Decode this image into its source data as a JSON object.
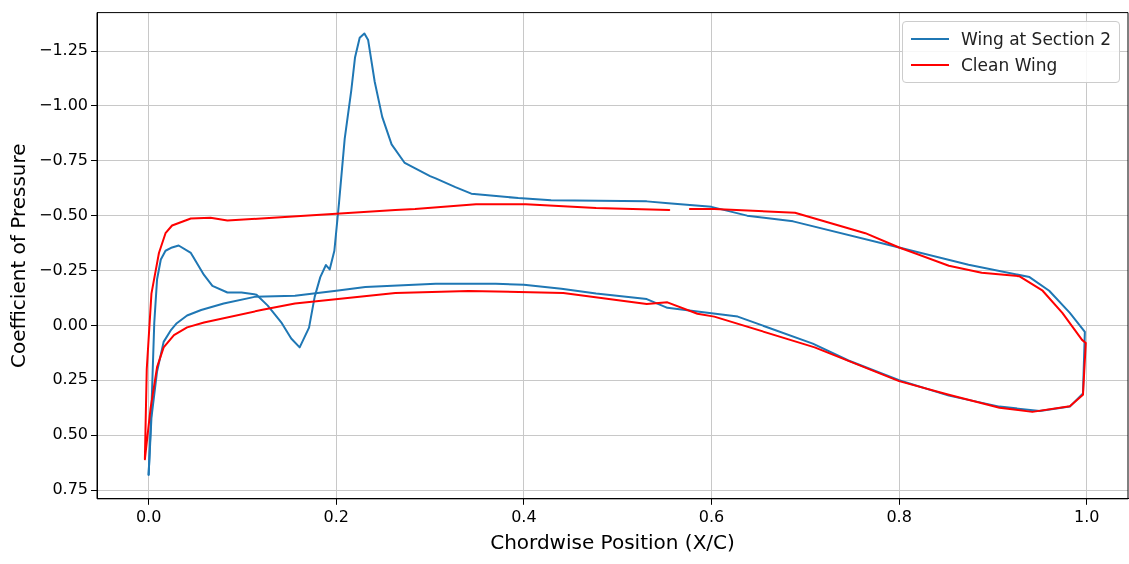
{
  "chart_data": {
    "type": "line",
    "xlabel": "Chordwise Position (X/C)",
    "ylabel": "Coefficient of Pressure",
    "xlim": [
      -0.055,
      1.044
    ],
    "ylim": [
      0.79,
      -1.425
    ],
    "xticks": [
      {
        "value": 0,
        "label": "0.0"
      },
      {
        "value": 0.2,
        "label": "0.2"
      },
      {
        "value": 0.4,
        "label": "0.4"
      },
      {
        "value": 0.6,
        "label": "0.6"
      },
      {
        "value": 0.8,
        "label": "0.8"
      },
      {
        "value": 1,
        "label": "1.0"
      }
    ],
    "yticks": [
      {
        "value": -1.25,
        "label": "−1.25"
      },
      {
        "value": -1,
        "label": "−1.00"
      },
      {
        "value": -0.75,
        "label": "−0.75"
      },
      {
        "value": -0.5,
        "label": "−0.50"
      },
      {
        "value": -0.25,
        "label": "−0.25"
      },
      {
        "value": 0,
        "label": "0.00"
      },
      {
        "value": 0.25,
        "label": "0.25"
      },
      {
        "value": 0.5,
        "label": "0.50"
      },
      {
        "value": 0.75,
        "label": "0.75"
      }
    ],
    "grid": true,
    "legend": "top right",
    "marker": "none",
    "line_style": "solid",
    "series": [
      {
        "name": "Wing at Section 2",
        "color": "#1f77b4",
        "x": [
          0,
          0.003,
          0.006,
          0.009,
          0.013,
          0.018,
          0.025,
          0.032,
          0.045,
          0.059,
          0.068,
          0.084,
          0.099,
          0.115,
          0.127,
          0.142,
          0.152,
          0.161,
          0.171,
          0.177,
          0.183,
          0.189,
          0.193,
          0.198,
          0.203,
          0.209,
          0.216,
          0.22,
          0.225,
          0.23,
          0.234,
          0.241,
          0.249,
          0.259,
          0.273,
          0.3,
          0.306,
          0.327,
          0.344,
          0.394,
          0.429,
          0.531,
          0.554,
          0.6,
          0.638,
          0.687,
          0.8,
          0.874,
          0.939,
          0.96,
          0.982,
          0.998,
          0.996
        ],
        "values": [
          0.68,
          0.38,
          -0.01,
          -0.21,
          -0.3,
          -0.34,
          -0.355,
          -0.364,
          -0.33,
          -0.23,
          -0.18,
          -0.15,
          -0.15,
          -0.14,
          -0.09,
          -0.01,
          0.06,
          0.1,
          0.01,
          -0.13,
          -0.22,
          -0.275,
          -0.255,
          -0.34,
          -0.56,
          -0.85,
          -1.07,
          -1.22,
          -1.31,
          -1.33,
          -1.3,
          -1.11,
          -0.95,
          -0.825,
          -0.74,
          -0.68,
          -0.67,
          -0.63,
          -0.6,
          -0.58,
          -0.57,
          -0.565,
          -0.557,
          -0.54,
          -0.5,
          -0.474,
          -0.355,
          -0.276,
          -0.22,
          -0.158,
          -0.057,
          0.03,
          0.31
        ]
      },
      {
        "color": "#1f77b4",
        "x": [
          0.996,
          0.982,
          0.95,
          0.907,
          0.853,
          0.8,
          0.746,
          0.708,
          0.628,
          0.6,
          0.553,
          0.531,
          0.477,
          0.44,
          0.4,
          0.37,
          0.306,
          0.231,
          0.2,
          0.156,
          0.113,
          0.08,
          0.056,
          0.041,
          0.03,
          0.024,
          0.016,
          0.009,
          0.003,
          0
        ],
        "values": [
          0.31,
          0.37,
          0.39,
          0.37,
          0.32,
          0.25,
          0.16,
          0.083,
          -0.04,
          -0.055,
          -0.08,
          -0.12,
          -0.145,
          -0.167,
          -0.185,
          -0.19,
          -0.19,
          -0.175,
          -0.158,
          -0.135,
          -0.13,
          -0.1,
          -0.07,
          -0.045,
          -0.01,
          0.02,
          0.075,
          0.21,
          0.42,
          0.68
        ]
      },
      {
        "name": "Clean Wing",
        "color": "#ff0000",
        "x": [
          -0.004,
          -0.002,
          0.003,
          0.011,
          0.018,
          0.025,
          0.045,
          0.066,
          0.084,
          0.12,
          0.263,
          0.284,
          0.349,
          0.402,
          0.477,
          0.555,
          null,
          0.577,
          0.603,
          0.689,
          0.764,
          0.8,
          0.853,
          0.888,
          0.928,
          0.953,
          0.974,
          0.995,
          0.999,
          0.996,
          0.982,
          0.942,
          0.907,
          0.853,
          0.8,
          0.71,
          0.603,
          0.585,
          0.553,
          0.531,
          0.442,
          0.341,
          0.263,
          0.156,
          0.12,
          0.059,
          0.041,
          0.027,
          0.016,
          0.009,
          0.002,
          -0.004
        ],
        "values": [
          0.61,
          0.2,
          -0.145,
          -0.33,
          -0.42,
          -0.455,
          -0.487,
          -0.49,
          -0.478,
          -0.487,
          -0.526,
          -0.53,
          -0.552,
          -0.552,
          -0.535,
          -0.526,
          null,
          -0.53,
          -0.53,
          -0.513,
          -0.42,
          -0.355,
          -0.272,
          -0.24,
          -0.224,
          -0.158,
          -0.057,
          0.066,
          0.08,
          0.316,
          0.368,
          0.394,
          0.375,
          0.316,
          0.254,
          0.1,
          -0.04,
          -0.053,
          -0.105,
          -0.097,
          -0.148,
          -0.157,
          -0.148,
          -0.1,
          -0.07,
          -0.013,
          0.009,
          0.044,
          0.1,
          0.19,
          0.38,
          0.61
        ]
      }
    ]
  }
}
